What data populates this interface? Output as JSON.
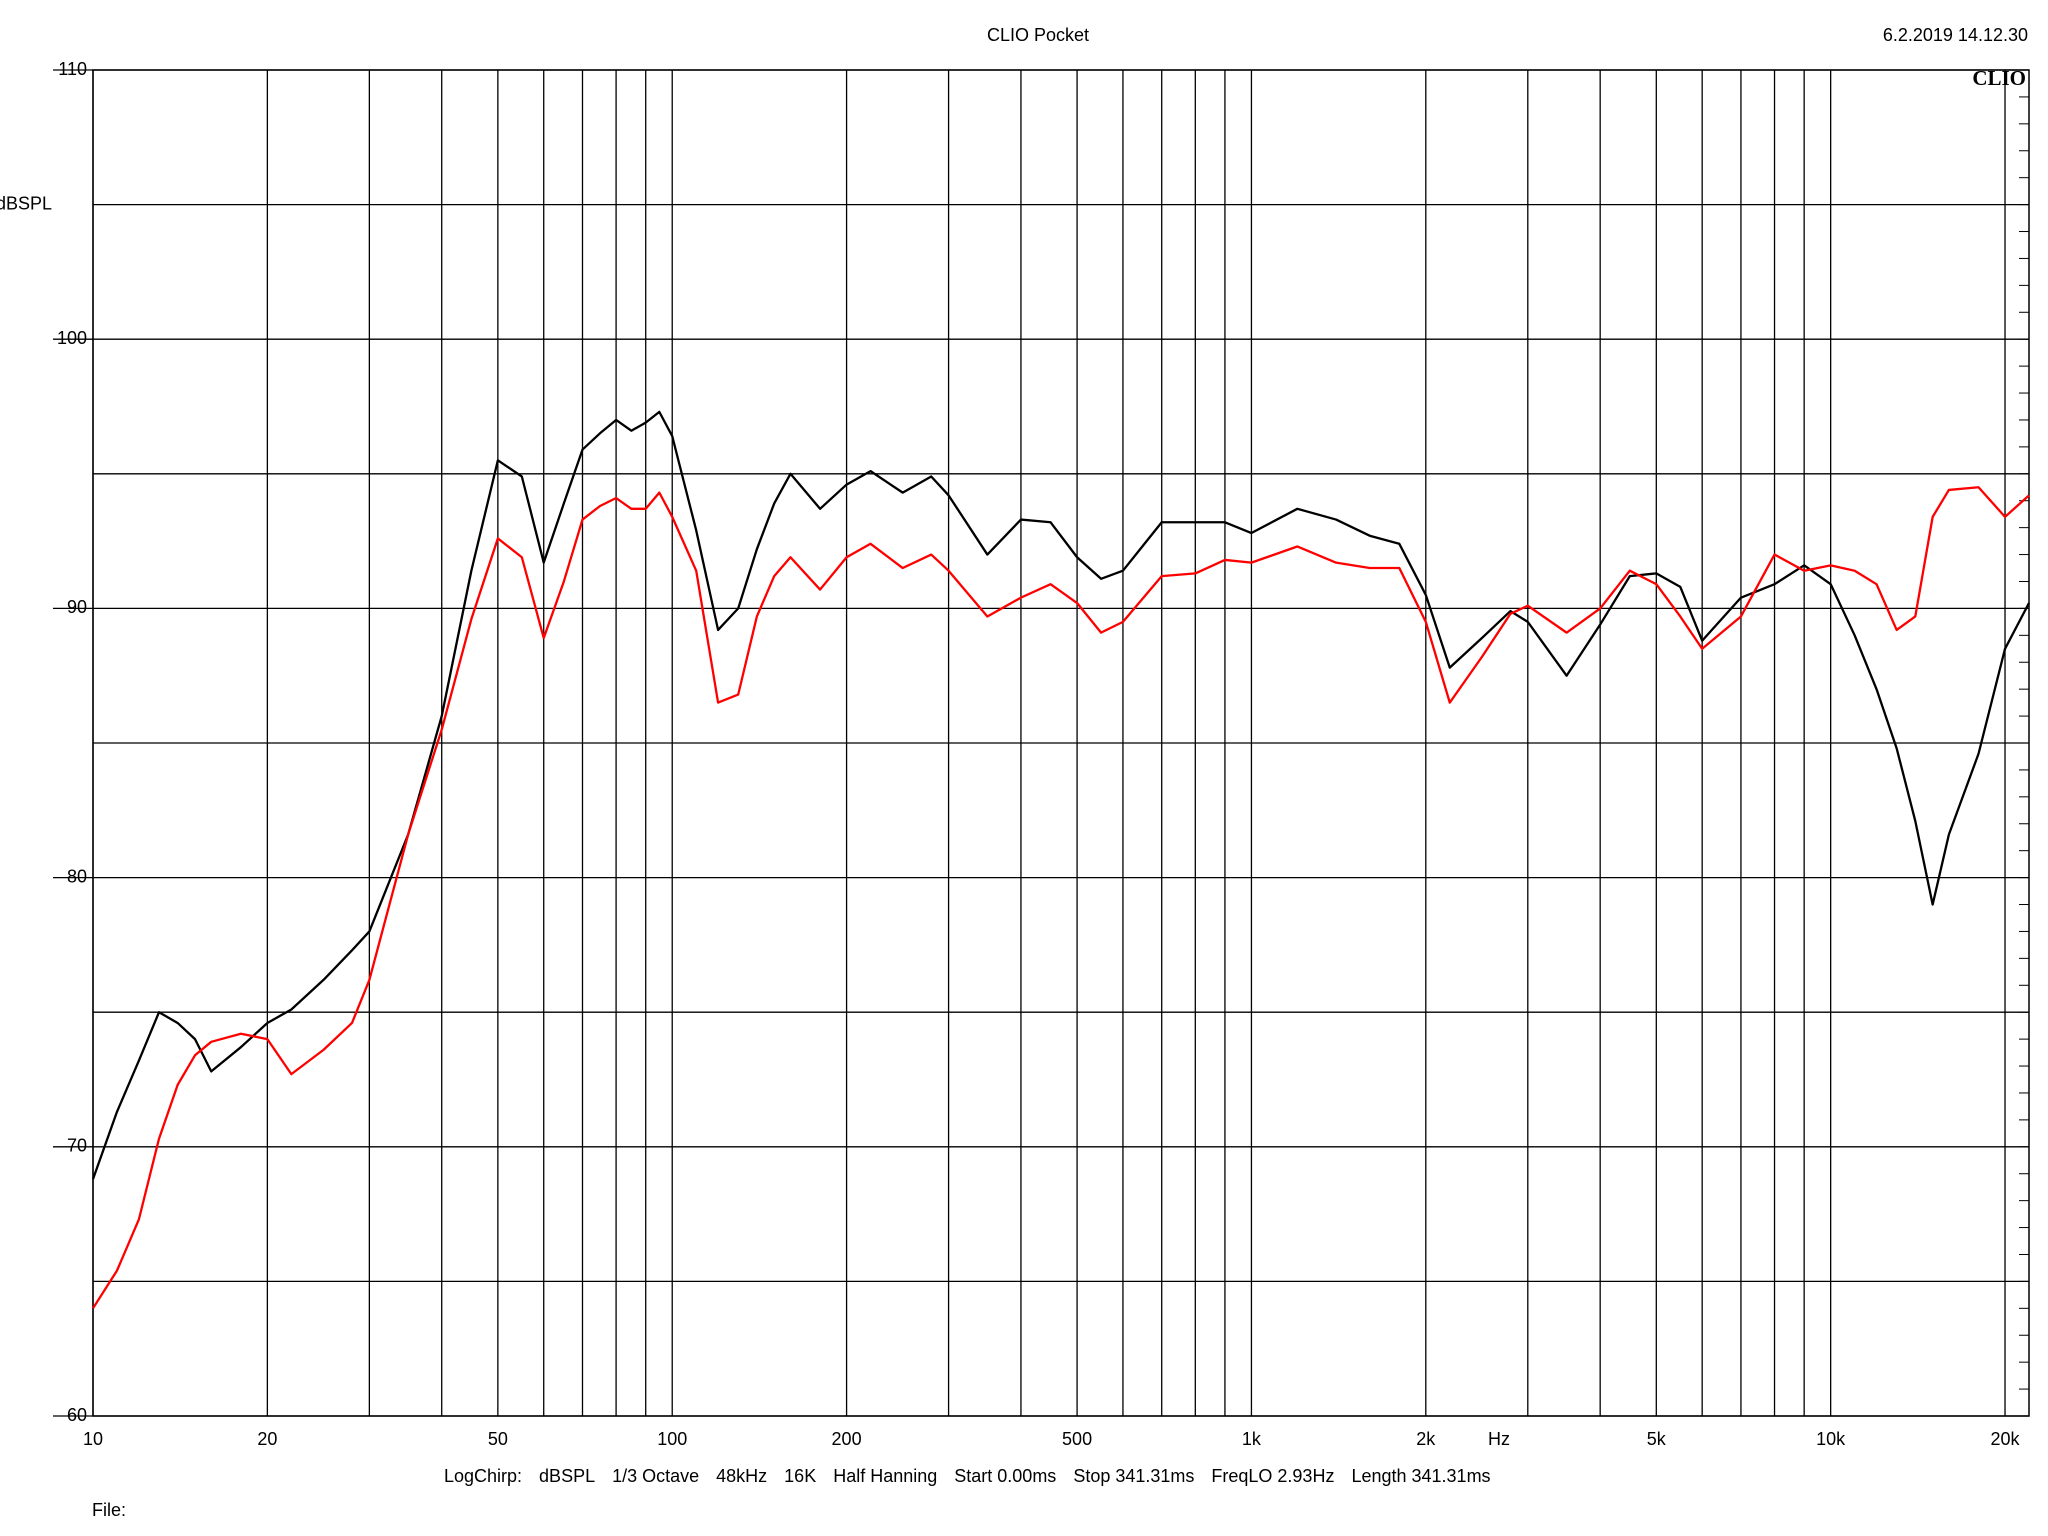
{
  "chart_data": {
    "type": "line",
    "title": "CLIO Pocket",
    "date": "6.2.2019 14.12.30",
    "logo": "CLIO",
    "y_label": "dBSPL",
    "x_label": "Hz",
    "log_x": true,
    "grid": true,
    "xlim": [
      10,
      22000
    ],
    "ylim": [
      60,
      110
    ],
    "xticks": [
      10,
      20,
      50,
      100,
      200,
      500,
      {
        "value": 1000,
        "label": "1k"
      },
      {
        "value": 2000,
        "label": "2k"
      },
      {
        "value": 5000,
        "label": "5k"
      },
      {
        "value": 10000,
        "label": "10k"
      },
      {
        "value": 20000,
        "label": "20k"
      }
    ],
    "xminor": [
      30,
      40,
      60,
      70,
      80,
      90,
      300,
      400,
      600,
      700,
      800,
      900,
      3000,
      4000,
      6000,
      7000,
      8000,
      9000
    ],
    "yticks": [
      60,
      70,
      80,
      90,
      100,
      110
    ],
    "yminor": [
      65,
      75,
      85,
      95,
      105
    ],
    "x": [
      10,
      11,
      12,
      13,
      14,
      15,
      16,
      18,
      20,
      22,
      25,
      28,
      30,
      35,
      40,
      45,
      50,
      55,
      60,
      65,
      70,
      75,
      80,
      85,
      90,
      95,
      100,
      110,
      120,
      130,
      140,
      150,
      160,
      180,
      200,
      220,
      250,
      280,
      300,
      350,
      400,
      450,
      500,
      550,
      600,
      700,
      800,
      900,
      1000,
      1200,
      1400,
      1600,
      1800,
      2000,
      2200,
      2500,
      2800,
      3000,
      3500,
      4000,
      4500,
      5000,
      5500,
      6000,
      7000,
      8000,
      9000,
      10000,
      11000,
      12000,
      13000,
      14000,
      15000,
      16000,
      18000,
      20000,
      22000
    ],
    "series": [
      {
        "color": "#000000",
        "values": [
          68.8,
          71.3,
          73.2,
          75.0,
          74.6,
          74.0,
          72.8,
          73.7,
          74.6,
          75.1,
          76.2,
          77.3,
          78.0,
          81.6,
          86.0,
          91.4,
          95.5,
          94.9,
          91.7,
          93.9,
          95.9,
          96.5,
          97.0,
          96.6,
          96.9,
          97.3,
          96.4,
          92.9,
          89.2,
          90.0,
          92.2,
          93.9,
          95.0,
          93.7,
          94.6,
          95.1,
          94.3,
          94.9,
          94.2,
          92.0,
          93.3,
          93.2,
          91.9,
          91.1,
          91.4,
          93.2,
          93.2,
          93.2,
          92.8,
          93.7,
          93.3,
          92.7,
          92.4,
          90.5,
          87.8,
          88.9,
          89.9,
          89.5,
          87.5,
          89.4,
          91.2,
          91.3,
          90.8,
          88.8,
          90.4,
          90.9,
          91.6,
          90.9,
          89.0,
          87.0,
          84.8,
          82.1,
          79.0,
          81.6,
          84.6,
          88.5,
          90.2
        ]
      },
      {
        "color": "#ff0000",
        "values": [
          64.0,
          65.4,
          67.3,
          70.3,
          72.3,
          73.4,
          73.9,
          74.2,
          74.0,
          72.7,
          73.6,
          74.6,
          76.2,
          81.6,
          85.5,
          89.6,
          92.6,
          91.9,
          88.9,
          91.0,
          93.3,
          93.8,
          94.1,
          93.7,
          93.7,
          94.3,
          93.4,
          91.4,
          86.5,
          86.8,
          89.7,
          91.2,
          91.9,
          90.7,
          91.9,
          92.4,
          91.5,
          92.0,
          91.4,
          89.7,
          90.4,
          90.9,
          90.2,
          89.1,
          89.5,
          91.2,
          91.3,
          91.8,
          91.7,
          92.3,
          91.7,
          91.5,
          91.5,
          89.5,
          86.5,
          88.2,
          89.8,
          90.1,
          89.1,
          90.0,
          91.4,
          90.9,
          89.7,
          88.5,
          89.7,
          92.0,
          91.4,
          91.6,
          91.4,
          90.9,
          89.2,
          89.7,
          93.4,
          94.4,
          94.5,
          93.4,
          94.2
        ]
      }
    ],
    "parameters": [
      "LogChirp:",
      "dBSPL",
      "1/3 Octave",
      "48kHz",
      "16K",
      "Half Hanning",
      "Start 0.00ms",
      "Stop 341.31ms",
      "FreqLO 2.93Hz",
      "Length 341.31ms"
    ],
    "file_label": "File:"
  }
}
